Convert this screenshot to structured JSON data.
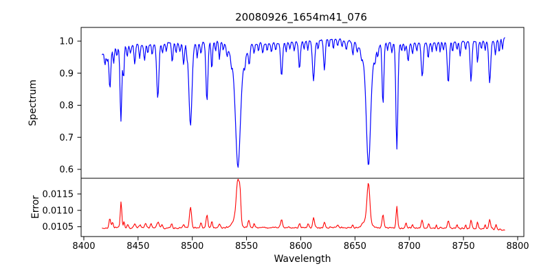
{
  "figure": {
    "title": "20080926_1654m41_076",
    "background_color": "#ffffff",
    "spine_color": "#000000",
    "grid": "off",
    "legend": "none"
  },
  "xaxis": {
    "label": "Wavelength",
    "xlim": [
      8397.5,
      8805.7
    ],
    "ticks": [
      {
        "v": 8400,
        "label": "8400"
      },
      {
        "v": 8450,
        "label": "8450"
      },
      {
        "v": 8500,
        "label": "8500"
      },
      {
        "v": 8550,
        "label": "8550"
      },
      {
        "v": 8600,
        "label": "8600"
      },
      {
        "v": 8650,
        "label": "8650"
      },
      {
        "v": 8700,
        "label": "8700"
      },
      {
        "v": 8750,
        "label": "8750"
      },
      {
        "v": 8800,
        "label": "8800"
      }
    ]
  },
  "chart_data": [
    {
      "type": "line",
      "name": "spectrum",
      "title": "20080926_1654m41_076",
      "xlabel": "Wavelength",
      "ylabel": "Spectrum",
      "color": "#0000ff",
      "line_width": 1.2,
      "x_range": [
        8417,
        8788
      ],
      "ylim": [
        0.5722,
        1.0428
      ],
      "yticks": [
        {
          "v": 0.6,
          "label": "0.6"
        },
        {
          "v": 0.7,
          "label": "0.7"
        },
        {
          "v": 0.8,
          "label": "0.8"
        },
        {
          "v": 0.9,
          "label": "0.9"
        },
        {
          "v": 1.0,
          "label": "1.0"
        }
      ],
      "samples": 560,
      "noise_amp": 0.0038,
      "feature_sign": -1,
      "continuum_anchors": [
        [
          8417,
          0.958
        ],
        [
          8422,
          0.972
        ],
        [
          8430,
          0.982
        ],
        [
          8445,
          0.988
        ],
        [
          8460,
          0.99
        ],
        [
          8480,
          0.995
        ],
        [
          8500,
          0.993
        ],
        [
          8520,
          0.998
        ],
        [
          8535,
          1.0
        ],
        [
          8545,
          0.998
        ],
        [
          8565,
          0.992
        ],
        [
          8585,
          0.995
        ],
        [
          8605,
          1.0
        ],
        [
          8625,
          1.006
        ],
        [
          8640,
          1.002
        ],
        [
          8660,
          0.998
        ],
        [
          8678,
          0.995
        ],
        [
          8695,
          0.99
        ],
        [
          8715,
          0.995
        ],
        [
          8735,
          0.996
        ],
        [
          8755,
          0.998
        ],
        [
          8775,
          1.0
        ],
        [
          8788,
          1.008
        ]
      ],
      "features": [
        [
          8419.5,
          0.04,
          0.6
        ],
        [
          8421.5,
          0.03,
          0.6
        ],
        [
          8424.0,
          0.125,
          0.8
        ],
        [
          8427.5,
          0.05,
          0.6
        ],
        [
          8430.5,
          0.03,
          0.6
        ],
        [
          8434.2,
          0.235,
          0.8
        ],
        [
          8436.6,
          0.1,
          0.6
        ],
        [
          8440.0,
          0.035,
          0.6
        ],
        [
          8443.0,
          0.025,
          0.6
        ],
        [
          8447.0,
          0.06,
          0.7
        ],
        [
          8451.5,
          0.04,
          0.6
        ],
        [
          8456.0,
          0.05,
          0.7
        ],
        [
          8459.0,
          0.03,
          0.6
        ],
        [
          8463.0,
          0.035,
          0.6
        ],
        [
          8468.2,
          0.17,
          1.0
        ],
        [
          8472.5,
          0.03,
          0.6
        ],
        [
          8476.0,
          0.025,
          0.6
        ],
        [
          8481.5,
          0.06,
          0.7
        ],
        [
          8485.0,
          0.03,
          0.6
        ],
        [
          8488.5,
          0.025,
          0.6
        ],
        [
          8492.0,
          0.07,
          0.7
        ],
        [
          8495.0,
          0.03,
          0.5
        ],
        [
          8498.3,
          0.255,
          1.4
        ],
        [
          8504.5,
          0.05,
          0.6
        ],
        [
          8508.0,
          0.035,
          0.6
        ],
        [
          8513.5,
          0.185,
          0.9
        ],
        [
          8518.0,
          0.085,
          0.6
        ],
        [
          8521.5,
          0.03,
          0.5
        ],
        [
          8525.0,
          0.05,
          0.6
        ],
        [
          8528.5,
          0.025,
          0.5
        ],
        [
          8532.0,
          0.03,
          0.5
        ],
        [
          8536.0,
          0.025,
          0.5
        ],
        [
          8542.1,
          0.29,
          2.1
        ],
        [
          8542.1,
          0.1,
          5.5
        ],
        [
          8548.5,
          0.03,
          0.6
        ],
        [
          8552.5,
          0.055,
          0.7
        ],
        [
          8557.0,
          0.035,
          0.6
        ],
        [
          8561.0,
          0.025,
          0.5
        ],
        [
          8565.0,
          0.03,
          0.6
        ],
        [
          8569.0,
          0.025,
          0.5
        ],
        [
          8573.0,
          0.03,
          0.6
        ],
        [
          8577.0,
          0.025,
          0.5
        ],
        [
          8582.3,
          0.105,
          0.9
        ],
        [
          8586.5,
          0.03,
          0.5
        ],
        [
          8590.0,
          0.025,
          0.5
        ],
        [
          8594.0,
          0.03,
          0.6
        ],
        [
          8598.8,
          0.085,
          0.8
        ],
        [
          8603.0,
          0.025,
          0.5
        ],
        [
          8606.5,
          0.03,
          0.6
        ],
        [
          8611.8,
          0.125,
          1.0
        ],
        [
          8616.0,
          0.03,
          0.5
        ],
        [
          8621.8,
          0.095,
          0.8
        ],
        [
          8626.0,
          0.025,
          0.5
        ],
        [
          8630.0,
          0.03,
          0.5
        ],
        [
          8634.0,
          0.02,
          0.5
        ],
        [
          8638.0,
          0.025,
          0.5
        ],
        [
          8642.0,
          0.03,
          0.6
        ],
        [
          8648.0,
          0.04,
          0.7
        ],
        [
          8652.0,
          0.025,
          0.5
        ],
        [
          8656.0,
          0.02,
          0.5
        ],
        [
          8662.4,
          0.295,
          1.8
        ],
        [
          8662.4,
          0.09,
          5.0
        ],
        [
          8668.5,
          0.025,
          0.5
        ],
        [
          8671.0,
          0.03,
          0.5
        ],
        [
          8675.8,
          0.195,
          0.8
        ],
        [
          8680.0,
          0.025,
          0.5
        ],
        [
          8684.0,
          0.03,
          0.6
        ],
        [
          8688.6,
          0.33,
          0.9
        ],
        [
          8693.0,
          0.025,
          0.5
        ],
        [
          8696.0,
          0.02,
          0.5
        ],
        [
          8699.0,
          0.055,
          0.7
        ],
        [
          8703.0,
          0.03,
          0.6
        ],
        [
          8707.0,
          0.025,
          0.5
        ],
        [
          8712.0,
          0.105,
          0.9
        ],
        [
          8717.5,
          0.05,
          0.6
        ],
        [
          8721.0,
          0.03,
          0.5
        ],
        [
          8725.0,
          0.025,
          0.5
        ],
        [
          8728.5,
          0.03,
          0.5
        ],
        [
          8731.5,
          0.025,
          0.5
        ],
        [
          8736.0,
          0.125,
          0.9
        ],
        [
          8740.0,
          0.03,
          0.5
        ],
        [
          8744.0,
          0.025,
          0.5
        ],
        [
          8747.0,
          0.045,
          0.6
        ],
        [
          8752.0,
          0.03,
          0.5
        ],
        [
          8757.0,
          0.125,
          0.8
        ],
        [
          8763.0,
          0.07,
          0.6
        ],
        [
          8766.5,
          0.025,
          0.5
        ],
        [
          8770.0,
          0.03,
          0.5
        ],
        [
          8774.2,
          0.13,
          0.9
        ],
        [
          8779.5,
          0.05,
          0.6
        ],
        [
          8783.0,
          0.04,
          0.6
        ],
        [
          8786.0,
          0.03,
          0.5
        ]
      ]
    },
    {
      "type": "line",
      "name": "error",
      "xlabel": "Wavelength",
      "ylabel": "Error",
      "color": "#ff0000",
      "line_width": 1.1,
      "x_range": [
        8417,
        8788
      ],
      "ylim": [
        0.0102,
        0.01198
      ],
      "yticks": [
        {
          "v": 0.0105,
          "label": "0.0105"
        },
        {
          "v": 0.011,
          "label": "0.0110"
        },
        {
          "v": 0.0115,
          "label": "0.0115"
        }
      ],
      "samples": 560,
      "noise_amp": 2.8e-05,
      "feature_sign": 1,
      "continuum_anchors": [
        [
          8417,
          0.01046
        ],
        [
          8450,
          0.01047
        ],
        [
          8500,
          0.01046
        ],
        [
          8550,
          0.01048
        ],
        [
          8600,
          0.01047
        ],
        [
          8650,
          0.01047
        ],
        [
          8700,
          0.01046
        ],
        [
          8750,
          0.01045
        ],
        [
          8775,
          0.01044
        ],
        [
          8788,
          0.0104
        ]
      ],
      "features": [
        [
          8424.0,
          0.0003,
          0.7
        ],
        [
          8426.5,
          0.00018,
          0.6
        ],
        [
          8434.3,
          0.00078,
          0.7
        ],
        [
          8437.0,
          0.0002,
          0.6
        ],
        [
          8440.5,
          0.00012,
          0.6
        ],
        [
          8447.0,
          0.00012,
          0.7
        ],
        [
          8452.0,
          0.0001,
          0.6
        ],
        [
          8457.0,
          0.00014,
          0.8
        ],
        [
          8462.0,
          0.0001,
          0.6
        ],
        [
          8468.3,
          0.00018,
          1.0
        ],
        [
          8472.0,
          0.0001,
          0.7
        ],
        [
          8481.0,
          0.00012,
          0.7
        ],
        [
          8492.0,
          0.00012,
          0.7
        ],
        [
          8498.3,
          0.00062,
          1.0
        ],
        [
          8508.0,
          0.00016,
          0.7
        ],
        [
          8513.5,
          0.0004,
          0.8
        ],
        [
          8518.0,
          0.0002,
          0.6
        ],
        [
          8525.0,
          0.00012,
          0.7
        ],
        [
          8540.5,
          0.0003,
          3.0
        ],
        [
          8542.0,
          0.00118,
          1.4
        ],
        [
          8544.0,
          0.0007,
          0.8
        ],
        [
          8552.0,
          0.00022,
          0.8
        ],
        [
          8557.0,
          0.00012,
          0.7
        ],
        [
          8582.3,
          0.00026,
          0.8
        ],
        [
          8599.0,
          0.00014,
          0.7
        ],
        [
          8607.0,
          0.00012,
          0.7
        ],
        [
          8611.8,
          0.0003,
          0.8
        ],
        [
          8621.8,
          0.00018,
          0.7
        ],
        [
          8634.0,
          0.0001,
          0.7
        ],
        [
          8648.0,
          0.0001,
          0.7
        ],
        [
          8661.0,
          0.00028,
          3.0
        ],
        [
          8662.4,
          0.00112,
          1.3
        ],
        [
          8675.8,
          0.00042,
          0.8
        ],
        [
          8688.6,
          0.00068,
          0.7
        ],
        [
          8697.0,
          0.00016,
          0.6
        ],
        [
          8703.0,
          0.00012,
          0.6
        ],
        [
          8712.0,
          0.00026,
          0.8
        ],
        [
          8718.0,
          0.00014,
          0.6
        ],
        [
          8725.0,
          0.0001,
          0.6
        ],
        [
          8736.0,
          0.00024,
          0.8
        ],
        [
          8744.0,
          0.0001,
          0.6
        ],
        [
          8752.0,
          0.00012,
          0.6
        ],
        [
          8757.0,
          0.00026,
          0.7
        ],
        [
          8763.0,
          0.00022,
          0.6
        ],
        [
          8770.0,
          0.00012,
          0.6
        ],
        [
          8774.2,
          0.0003,
          0.7
        ],
        [
          8780.0,
          0.00014,
          0.6
        ]
      ]
    }
  ]
}
